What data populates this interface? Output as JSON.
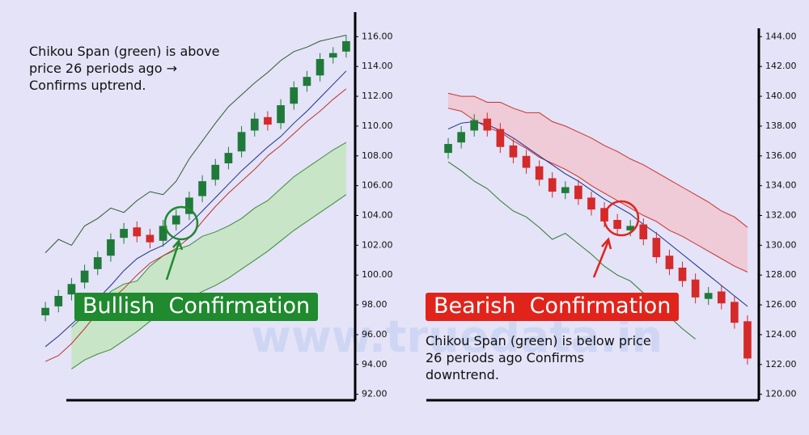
{
  "watermark": "www.truedata.in",
  "chart_data": [
    {
      "type": "candlestick",
      "open": [
        97.3,
        97.9,
        98.7,
        99.5,
        100.4,
        101.3,
        102.5,
        103.2,
        102.7,
        102.3,
        103.4,
        104.1,
        105.3,
        106.4,
        107.5,
        108.3,
        109.7,
        110.6,
        110.2,
        111.5,
        112.7,
        113.4,
        114.6,
        115.0
      ],
      "high": [
        98.2,
        99.0,
        99.8,
        100.7,
        101.6,
        102.8,
        103.5,
        103.6,
        103.1,
        103.7,
        104.4,
        105.6,
        106.7,
        107.8,
        108.6,
        110.0,
        110.9,
        111.0,
        111.8,
        113.0,
        113.7,
        114.9,
        115.3,
        116.1
      ],
      "low": [
        96.9,
        97.5,
        98.3,
        99.1,
        100.0,
        100.9,
        102.1,
        102.2,
        101.8,
        101.9,
        103.0,
        103.7,
        104.9,
        106.0,
        107.1,
        107.9,
        109.3,
        109.7,
        109.8,
        111.1,
        112.3,
        113.0,
        114.2,
        114.6
      ],
      "close": [
        97.8,
        98.6,
        99.4,
        100.3,
        101.2,
        102.4,
        103.1,
        102.6,
        102.2,
        103.3,
        104.0,
        105.2,
        106.3,
        107.4,
        108.2,
        109.6,
        110.5,
        110.1,
        111.4,
        112.6,
        113.3,
        114.5,
        114.9,
        115.7
      ],
      "up_color": "#1f7a3a",
      "down_color": "#d42a2a",
      "series": [
        {
          "color": "#2f5a2f",
          "values": [
            101.5,
            102.4,
            102.0,
            103.3,
            103.8,
            104.5,
            104.2,
            105.0,
            105.6,
            105.4,
            106.3,
            107.8,
            109.0,
            110.2,
            111.3,
            112.1,
            112.9,
            113.6,
            114.4,
            115.0,
            115.3,
            115.7,
            115.9,
            116.1
          ]
        },
        {
          "color": "#1c2f8c",
          "values": [
            95.2,
            95.9,
            96.7,
            97.5,
            98.4,
            99.3,
            100.3,
            101.1,
            101.6,
            102.0,
            102.7,
            103.4,
            104.3,
            105.2,
            106.1,
            107.0,
            107.8,
            108.6,
            109.3,
            110.2,
            111.0,
            111.9,
            112.8,
            113.7
          ]
        },
        {
          "color": "#c0322a",
          "values": [
            94.2,
            94.6,
            95.4,
            96.4,
            97.5,
            98.3,
            99.1,
            100.0,
            100.8,
            101.3,
            101.8,
            102.5,
            103.6,
            104.6,
            105.5,
            106.3,
            107.1,
            108.0,
            108.7,
            109.5,
            110.3,
            111.0,
            111.8,
            112.5
          ]
        }
      ],
      "cloud": {
        "fill": "#bfe6b8",
        "line_color": "#3c8a3c",
        "upper": [
          null,
          null,
          96.5,
          97.3,
          98.0,
          98.9,
          99.4,
          99.6,
          100.6,
          101.3,
          101.7,
          102.0,
          102.6,
          102.9,
          103.3,
          103.8,
          104.5,
          105.0,
          105.8,
          106.6,
          107.2,
          107.8,
          108.4,
          108.9
        ],
        "lower": [
          null,
          null,
          93.7,
          94.3,
          94.7,
          95.0,
          95.6,
          96.2,
          96.9,
          97.4,
          97.9,
          98.4,
          98.9,
          99.3,
          99.8,
          100.4,
          101.0,
          101.6,
          102.3,
          103.0,
          103.6,
          104.2,
          104.8,
          105.4
        ]
      },
      "ylim": [
        91.6,
        116.4
      ],
      "yticks": [
        {
          "value": 92,
          "label": "92.00"
        },
        {
          "value": 94,
          "label": "94.00"
        },
        {
          "value": 96,
          "label": "96.00"
        },
        {
          "value": 98,
          "label": "98.00"
        },
        {
          "value": 100,
          "label": "100.00"
        },
        {
          "value": 102,
          "label": "102.00"
        },
        {
          "value": 104,
          "label": "104.00"
        },
        {
          "value": 106,
          "label": "106.00"
        },
        {
          "value": 108,
          "label": "108.00"
        },
        {
          "value": 110,
          "label": "110.00"
        },
        {
          "value": 112,
          "label": "112.00"
        },
        {
          "value": 114,
          "label": "114.00"
        },
        {
          "value": 116,
          "label": "116.00"
        }
      ],
      "annotation": "Chikou Span (green) is above price 26 periods ago → Confirms uptrend.",
      "label": "Bullish  Confirmation",
      "label_color": "#1f8a2e"
    },
    {
      "type": "candlestick",
      "open": [
        136.2,
        136.9,
        137.7,
        138.5,
        137.8,
        136.7,
        136.0,
        135.3,
        134.5,
        133.5,
        134.0,
        133.2,
        132.5,
        131.7,
        131.0,
        131.4,
        130.5,
        129.3,
        128.5,
        127.7,
        126.4,
        126.9,
        126.2,
        124.9
      ],
      "high": [
        137.2,
        138.0,
        138.8,
        138.9,
        138.2,
        137.1,
        136.4,
        135.7,
        134.9,
        134.3,
        134.4,
        133.6,
        132.9,
        132.1,
        131.7,
        131.8,
        130.9,
        129.7,
        128.9,
        128.1,
        127.2,
        127.3,
        126.6,
        125.3
      ],
      "low": [
        135.8,
        136.5,
        137.3,
        137.3,
        136.2,
        135.5,
        134.8,
        134.0,
        133.2,
        133.1,
        132.7,
        132.0,
        131.2,
        130.7,
        130.6,
        130.0,
        128.8,
        128.0,
        127.2,
        126.1,
        126.0,
        125.7,
        124.4,
        122.0
      ],
      "close": [
        136.8,
        137.6,
        138.4,
        137.7,
        136.6,
        135.9,
        135.2,
        134.4,
        133.6,
        133.9,
        133.1,
        132.4,
        131.6,
        131.1,
        131.3,
        130.4,
        129.2,
        128.4,
        127.6,
        126.5,
        126.8,
        126.1,
        124.8,
        122.4
      ],
      "up_color": "#1f7a3a",
      "down_color": "#d42a2a",
      "series": [
        {
          "color": "#1c2f8c",
          "values": [
            137.8,
            138.2,
            138.3,
            138.1,
            137.7,
            137.2,
            136.6,
            136.0,
            135.4,
            134.8,
            134.3,
            133.7,
            133.1,
            132.6,
            132.1,
            131.4,
            130.8,
            130.1,
            129.4,
            128.7,
            128.0,
            127.3,
            126.6,
            125.9
          ]
        },
        {
          "color": "#2f7a2f",
          "values": [
            135.6,
            135.0,
            134.3,
            133.8,
            133.0,
            132.3,
            131.9,
            131.2,
            130.4,
            130.8,
            130.1,
            129.4,
            128.6,
            128.0,
            127.6,
            126.8,
            126.0,
            125.2,
            124.4,
            123.7,
            null,
            null,
            null,
            null
          ]
        }
      ],
      "cloud": {
        "fill": "#f3c2cc",
        "line_color": "#c8342e",
        "upper": [
          140.2,
          140.0,
          140.0,
          139.6,
          139.6,
          139.2,
          138.9,
          138.9,
          138.3,
          138.0,
          137.6,
          137.2,
          136.7,
          136.3,
          135.8,
          135.4,
          134.9,
          134.4,
          133.9,
          133.4,
          132.9,
          132.3,
          131.9,
          131.2
        ],
        "lower": [
          139.2,
          139.0,
          138.4,
          137.9,
          137.6,
          137.0,
          136.5,
          135.9,
          135.5,
          135.1,
          134.6,
          134.0,
          133.5,
          133.0,
          132.5,
          132.0,
          131.6,
          131.0,
          130.6,
          130.1,
          129.6,
          129.1,
          128.6,
          128.2
        ]
      },
      "ylim": [
        119.6,
        144.4
      ],
      "yticks": [
        {
          "value": 120,
          "label": "120.00"
        },
        {
          "value": 122,
          "label": "122.00"
        },
        {
          "value": 124,
          "label": "124.00"
        },
        {
          "value": 126,
          "label": "126.00"
        },
        {
          "value": 128,
          "label": "128.00"
        },
        {
          "value": 130,
          "label": "130.00"
        },
        {
          "value": 132,
          "label": "132.00"
        },
        {
          "value": 134,
          "label": "134.00"
        },
        {
          "value": 136,
          "label": "136.00"
        },
        {
          "value": 138,
          "label": "138.00"
        },
        {
          "value": 140,
          "label": "140.00"
        },
        {
          "value": 142,
          "label": "142.00"
        },
        {
          "value": 144,
          "label": "144.00"
        }
      ],
      "annotation": "Chikou Span (green) is below price 26 periods ago Confirms downtrend.",
      "label": "Bearish  Confirmation",
      "label_color": "#e0241c"
    }
  ]
}
